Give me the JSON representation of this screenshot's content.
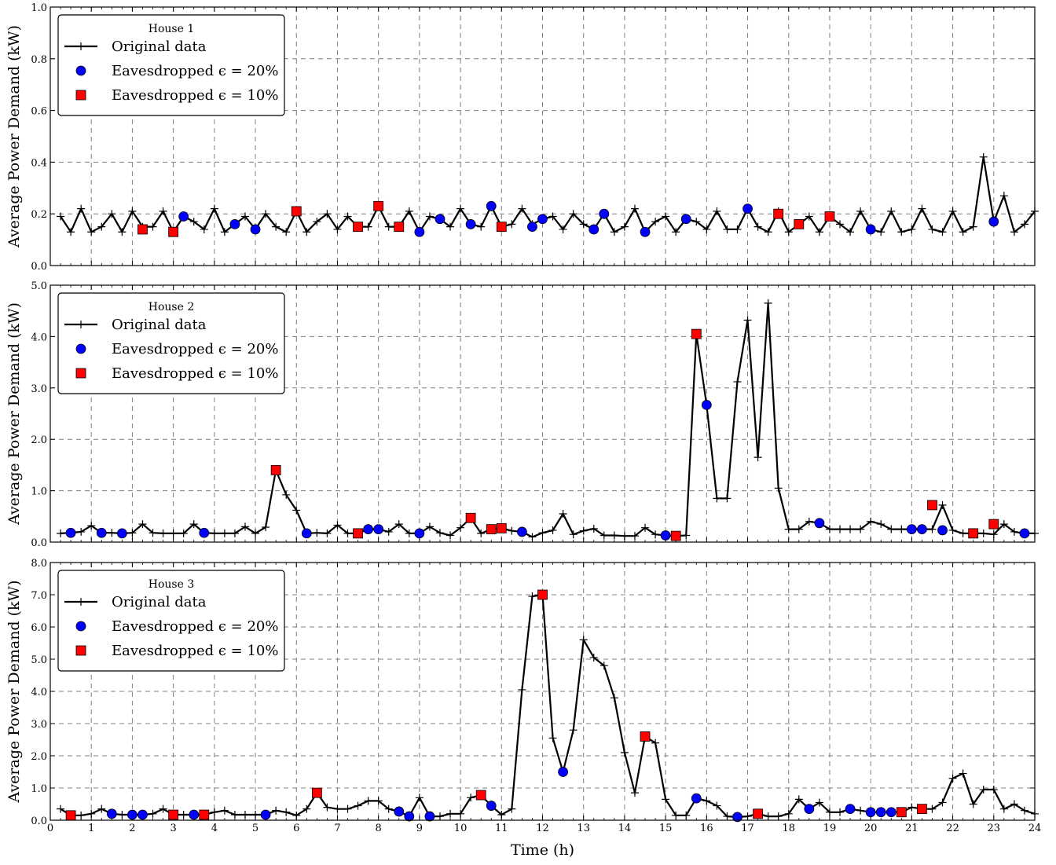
{
  "figure": {
    "xlabel": "Time (h)",
    "x_ticks": [
      "0",
      "1",
      "2",
      "3",
      "4",
      "5",
      "6",
      "7",
      "8",
      "9",
      "10",
      "11",
      "12",
      "13",
      "14",
      "15",
      "16",
      "17",
      "18",
      "19",
      "20",
      "21",
      "22",
      "23",
      "24"
    ],
    "legend": {
      "original": "Original data",
      "eaves20": "Eavesdropped ϵ = 20%",
      "eaves10": "Eavesdropped ϵ = 10%"
    },
    "colors": {
      "line": "#000000",
      "eaves20": "#0000ff",
      "eaves10": "#ff0000",
      "grid": "#7f7f7f"
    }
  },
  "chart_data": [
    {
      "type": "line",
      "title": "House 1",
      "ylabel": "Average Power Demand (kW)",
      "xlim": [
        0,
        24
      ],
      "ylim": [
        0,
        1.0
      ],
      "y_ticks": [
        "0.0",
        "0.2",
        "0.4",
        "0.6",
        "0.8",
        "1.0"
      ],
      "y_tick_values": [
        0,
        0.2,
        0.4,
        0.6,
        0.8,
        1.0
      ],
      "grid": true,
      "legend_position": "top-left",
      "series": [
        {
          "name": "Original data",
          "x": [
            0.25,
            0.5,
            0.75,
            1,
            1.25,
            1.5,
            1.75,
            2,
            2.25,
            2.5,
            2.75,
            3,
            3.25,
            3.5,
            3.75,
            4,
            4.25,
            4.5,
            4.75,
            5,
            5.25,
            5.5,
            5.75,
            6,
            6.25,
            6.5,
            6.75,
            7,
            7.25,
            7.5,
            7.75,
            8,
            8.25,
            8.5,
            8.75,
            9,
            9.25,
            9.5,
            9.75,
            10,
            10.25,
            10.5,
            10.75,
            11,
            11.25,
            11.5,
            11.75,
            12,
            12.25,
            12.5,
            12.75,
            13,
            13.25,
            13.5,
            13.75,
            14,
            14.25,
            14.5,
            14.75,
            15,
            15.25,
            15.5,
            15.75,
            16,
            16.25,
            16.5,
            16.75,
            17,
            17.25,
            17.5,
            17.75,
            18,
            18.25,
            18.5,
            18.75,
            19,
            19.25,
            19.5,
            19.75,
            20,
            20.25,
            20.5,
            20.75,
            21,
            21.25,
            21.5,
            21.75,
            22,
            22.25,
            22.5,
            22.75,
            23,
            23.25,
            23.5,
            23.75,
            24
          ],
          "y": [
            0.19,
            0.13,
            0.22,
            0.13,
            0.15,
            0.2,
            0.13,
            0.21,
            0.15,
            0.15,
            0.21,
            0.13,
            0.19,
            0.17,
            0.14,
            0.22,
            0.13,
            0.16,
            0.19,
            0.14,
            0.2,
            0.15,
            0.13,
            0.21,
            0.13,
            0.17,
            0.2,
            0.14,
            0.19,
            0.15,
            0.15,
            0.23,
            0.15,
            0.15,
            0.21,
            0.13,
            0.19,
            0.18,
            0.15,
            0.22,
            0.16,
            0.15,
            0.23,
            0.15,
            0.16,
            0.22,
            0.16,
            0.18,
            0.19,
            0.14,
            0.2,
            0.16,
            0.14,
            0.2,
            0.13,
            0.15,
            0.22,
            0.13,
            0.17,
            0.19,
            0.13,
            0.18,
            0.17,
            0.14,
            0.21,
            0.14,
            0.14,
            0.22,
            0.15,
            0.13,
            0.21,
            0.13,
            0.16,
            0.19,
            0.13,
            0.19,
            0.16,
            0.13,
            0.21,
            0.14,
            0.13,
            0.21,
            0.13,
            0.14,
            0.22,
            0.14,
            0.13,
            0.21,
            0.13,
            0.15,
            0.42,
            0.17,
            0.27,
            0.13,
            0.16,
            0.21
          ]
        },
        {
          "name": "Eavesdropped ϵ = 20%",
          "x": [
            3.25,
            4.5,
            5,
            9,
            9.5,
            10.25,
            10.75,
            11.75,
            12,
            13.25,
            13.5,
            14.5,
            15.5,
            17,
            20,
            23
          ],
          "y": [
            0.19,
            0.16,
            0.14,
            0.13,
            0.18,
            0.16,
            0.23,
            0.15,
            0.18,
            0.14,
            0.2,
            0.13,
            0.18,
            0.22,
            0.14,
            0.17
          ]
        },
        {
          "name": "Eavesdropped ϵ = 10%",
          "x": [
            2.25,
            3,
            7.5,
            8,
            8.5,
            6,
            11,
            17.75,
            18.25,
            19
          ],
          "y": [
            0.14,
            0.13,
            0.15,
            0.23,
            0.15,
            0.21,
            0.15,
            0.2,
            0.16,
            0.19
          ]
        }
      ]
    },
    {
      "type": "line",
      "title": "House 2",
      "ylabel": "Average Power Demand (kW)",
      "xlim": [
        0,
        24
      ],
      "ylim": [
        0,
        5.0
      ],
      "y_ticks": [
        "0.0",
        "1.0",
        "2.0",
        "3.0",
        "4.0",
        "5.0"
      ],
      "y_tick_values": [
        0,
        1,
        2,
        3,
        4,
        5
      ],
      "grid": true,
      "legend_position": "top-left",
      "series": [
        {
          "name": "Original data",
          "x": [
            0.25,
            0.5,
            0.75,
            1,
            1.25,
            1.5,
            1.75,
            2,
            2.25,
            2.5,
            2.75,
            3,
            3.25,
            3.5,
            3.75,
            4,
            4.25,
            4.5,
            4.75,
            5,
            5.25,
            5.5,
            5.75,
            6,
            6.25,
            6.5,
            6.75,
            7,
            7.25,
            7.5,
            7.75,
            8,
            8.25,
            8.5,
            8.75,
            9,
            9.25,
            9.5,
            9.75,
            10,
            10.25,
            10.5,
            10.75,
            11,
            11.25,
            11.5,
            11.75,
            12,
            12.25,
            12.5,
            12.75,
            13,
            13.25,
            13.5,
            13.75,
            14,
            14.25,
            14.5,
            14.75,
            15,
            15.25,
            15.5,
            15.75,
            16,
            16.25,
            16.5,
            16.75,
            17,
            17.25,
            17.5,
            17.75,
            18,
            18.25,
            18.5,
            18.75,
            19,
            19.25,
            19.5,
            19.75,
            20,
            20.25,
            20.5,
            20.75,
            21,
            21.25,
            21.5,
            21.75,
            22,
            22.25,
            22.5,
            22.75,
            23,
            23.25,
            23.5,
            23.75,
            24
          ],
          "y": [
            0.17,
            0.18,
            0.2,
            0.32,
            0.18,
            0.18,
            0.17,
            0.18,
            0.35,
            0.18,
            0.17,
            0.17,
            0.17,
            0.35,
            0.18,
            0.17,
            0.17,
            0.17,
            0.3,
            0.17,
            0.29,
            1.4,
            0.92,
            0.62,
            0.17,
            0.18,
            0.17,
            0.33,
            0.17,
            0.17,
            0.25,
            0.25,
            0.2,
            0.35,
            0.17,
            0.17,
            0.3,
            0.18,
            0.13,
            0.28,
            0.47,
            0.17,
            0.25,
            0.27,
            0.22,
            0.2,
            0.1,
            0.18,
            0.23,
            0.55,
            0.15,
            0.22,
            0.26,
            0.13,
            0.13,
            0.12,
            0.12,
            0.28,
            0.15,
            0.13,
            0.12,
            0.13,
            4.05,
            2.67,
            0.85,
            0.85,
            3.12,
            4.32,
            1.65,
            4.65,
            1.05,
            0.25,
            0.25,
            0.4,
            0.37,
            0.25,
            0.25,
            0.25,
            0.25,
            0.4,
            0.35,
            0.25,
            0.25,
            0.25,
            0.25,
            0.25,
            0.72,
            0.23,
            0.17,
            0.17,
            0.17,
            0.15,
            0.35,
            0.2,
            0.17,
            0.17
          ]
        },
        {
          "name": "Eavesdropped ϵ = 20%",
          "x": [
            0.5,
            1.25,
            1.75,
            3.75,
            6.25,
            7.75,
            8,
            9,
            11.5,
            15,
            16,
            18.75,
            21,
            21.25,
            21.75,
            23.75
          ],
          "y": [
            0.18,
            0.18,
            0.17,
            0.18,
            0.17,
            0.25,
            0.25,
            0.17,
            0.2,
            0.13,
            2.67,
            0.37,
            0.25,
            0.25,
            0.23,
            0.17
          ]
        },
        {
          "name": "Eavesdropped ϵ = 10%",
          "x": [
            5.5,
            7.5,
            10.25,
            10.75,
            11,
            15.25,
            15.75,
            21.5,
            22.5,
            23
          ],
          "y": [
            1.4,
            0.17,
            0.47,
            0.25,
            0.27,
            0.12,
            4.05,
            0.72,
            0.17,
            0.35
          ]
        }
      ]
    },
    {
      "type": "line",
      "title": "House 3",
      "ylabel": "Average Power Demand (kW)",
      "xlim": [
        0,
        24
      ],
      "ylim": [
        0,
        8.0
      ],
      "y_ticks": [
        "0.0",
        "1.0",
        "2.0",
        "3.0",
        "4.0",
        "5.0",
        "6.0",
        "7.0",
        "8.0"
      ],
      "y_tick_values": [
        0,
        1,
        2,
        3,
        4,
        5,
        6,
        7,
        8
      ],
      "grid": true,
      "legend_position": "top-left",
      "series": [
        {
          "name": "Original data",
          "x": [
            0.25,
            0.5,
            0.75,
            1,
            1.25,
            1.5,
            1.75,
            2,
            2.25,
            2.5,
            2.75,
            3,
            3.25,
            3.5,
            3.75,
            4,
            4.25,
            4.5,
            4.75,
            5,
            5.25,
            5.5,
            5.75,
            6,
            6.25,
            6.5,
            6.75,
            7,
            7.25,
            7.5,
            7.75,
            8,
            8.25,
            8.5,
            8.75,
            9,
            9.25,
            9.5,
            9.75,
            10,
            10.25,
            10.5,
            10.75,
            11,
            11.25,
            11.5,
            11.75,
            12,
            12.25,
            12.5,
            12.75,
            13,
            13.25,
            13.5,
            13.75,
            14,
            14.25,
            14.5,
            14.75,
            15,
            15.25,
            15.5,
            15.75,
            16,
            16.25,
            16.5,
            16.75,
            17,
            17.25,
            17.5,
            17.75,
            18,
            18.25,
            18.5,
            18.75,
            19,
            19.25,
            19.5,
            19.75,
            20,
            20.25,
            20.5,
            20.75,
            21,
            21.25,
            21.5,
            21.75,
            22,
            22.25,
            22.5,
            22.75,
            23,
            23.25,
            23.5,
            23.75,
            24
          ],
          "y": [
            0.35,
            0.15,
            0.15,
            0.2,
            0.35,
            0.2,
            0.17,
            0.17,
            0.17,
            0.2,
            0.35,
            0.17,
            0.17,
            0.17,
            0.17,
            0.25,
            0.3,
            0.17,
            0.17,
            0.17,
            0.17,
            0.3,
            0.25,
            0.15,
            0.35,
            0.85,
            0.4,
            0.35,
            0.35,
            0.45,
            0.6,
            0.6,
            0.35,
            0.27,
            0.12,
            0.7,
            0.12,
            0.12,
            0.2,
            0.2,
            0.7,
            0.78,
            0.45,
            0.17,
            0.35,
            4.05,
            6.95,
            7.0,
            2.55,
            1.5,
            2.8,
            5.6,
            5.05,
            4.8,
            3.8,
            2.1,
            0.85,
            2.6,
            2.4,
            0.65,
            0.15,
            0.15,
            0.68,
            0.6,
            0.45,
            0.12,
            0.1,
            0.12,
            0.2,
            0.12,
            0.12,
            0.2,
            0.65,
            0.35,
            0.55,
            0.25,
            0.25,
            0.35,
            0.3,
            0.25,
            0.25,
            0.25,
            0.25,
            0.4,
            0.35,
            0.35,
            0.55,
            1.3,
            1.45,
            0.5,
            0.95,
            0.95,
            0.35,
            0.5,
            0.3,
            0.2
          ]
        },
        {
          "name": "Eavesdropped ϵ = 20%",
          "x": [
            1.5,
            2,
            2.25,
            3.5,
            5.25,
            8.5,
            8.75,
            9.25,
            10.75,
            12.5,
            15.75,
            16.75,
            18.5,
            19.5,
            20,
            20.25,
            20.5
          ],
          "y": [
            0.2,
            0.17,
            0.17,
            0.17,
            0.17,
            0.27,
            0.12,
            0.12,
            0.45,
            1.5,
            0.68,
            0.1,
            0.35,
            0.35,
            0.25,
            0.25,
            0.25
          ]
        },
        {
          "name": "Eavesdropped ϵ = 10%",
          "x": [
            0.5,
            3,
            3.75,
            6.5,
            10.5,
            12,
            14.5,
            17.25,
            20.75,
            21.25
          ],
          "y": [
            0.15,
            0.17,
            0.17,
            0.85,
            0.78,
            7.0,
            2.6,
            0.2,
            0.25,
            0.35
          ]
        }
      ]
    }
  ]
}
